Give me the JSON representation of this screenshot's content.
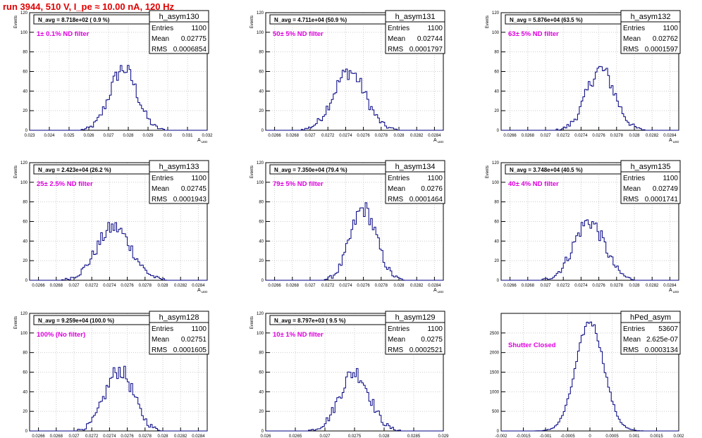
{
  "page_title": "run 3944,   510 V, I_pe ≈ 10.00 nA, 120 Hz",
  "colors": {
    "title": "#e00000",
    "histogram": "#000080",
    "annotation": "#e000e0",
    "grid": "#cccccc"
  },
  "chart_data": [
    {
      "type": "histogram",
      "name": "h_asym130",
      "title": "N_avg = 8.718e+02 ( 0.9 %)",
      "annotation": "1± 0.1% ND filter",
      "stats": {
        "Entries": "1100",
        "Mean": "0.02775",
        "RMS": "0.0006854"
      },
      "xlabel": "A_LED",
      "ylabel": "Events",
      "xlim": [
        0.023,
        0.032
      ],
      "ylim": [
        0,
        120
      ],
      "xticks": [
        "0.023",
        "0.024",
        "0.025",
        "0.026",
        "0.027",
        "0.028",
        "0.029",
        "0.03",
        "0.031",
        "0.032"
      ],
      "yticks": [
        "0",
        "20",
        "40",
        "60",
        "80",
        "100",
        "120"
      ],
      "peak": 63,
      "grid": true
    },
    {
      "type": "histogram",
      "name": "h_asym131",
      "title": "N_avg = 4.711e+04 (50.9 %)",
      "annotation": "50± 5% ND filter",
      "stats": {
        "Entries": "1100",
        "Mean": "0.02744",
        "RMS": "0.0001797"
      },
      "xlabel": "A_LED",
      "ylabel": "Events",
      "xlim": [
        0.0265,
        0.0285
      ],
      "ylim": [
        0,
        120
      ],
      "xticks": [
        "0.0266",
        "0.0268",
        "0.027",
        "0.0272",
        "0.0274",
        "0.0276",
        "0.0278",
        "0.028",
        "0.0282",
        "0.0284"
      ],
      "yticks": [
        "0",
        "20",
        "40",
        "60",
        "80",
        "100",
        "120"
      ],
      "peak": 60,
      "grid": true
    },
    {
      "type": "histogram",
      "name": "h_asym132",
      "title": "N_avg = 5.876e+04 (63.5 %)",
      "annotation": "63± 5% ND filter",
      "stats": {
        "Entries": "1100",
        "Mean": "0.02762",
        "RMS": "0.0001597"
      },
      "xlabel": "A_LED",
      "ylabel": "Events",
      "xlim": [
        0.0265,
        0.0285
      ],
      "ylim": [
        0,
        120
      ],
      "xticks": [
        "0.0266",
        "0.0268",
        "0.027",
        "0.0272",
        "0.0274",
        "0.0276",
        "0.0278",
        "0.028",
        "0.0282",
        "0.0284"
      ],
      "yticks": [
        "0",
        "20",
        "40",
        "60",
        "80",
        "100",
        "120"
      ],
      "peak": 62,
      "grid": true
    },
    {
      "type": "histogram",
      "name": "h_asym133",
      "title": "N_avg = 2.423e+04 (26.2 %)",
      "annotation": "25± 2.5% ND filter",
      "stats": {
        "Entries": "1100",
        "Mean": "0.02745",
        "RMS": "0.0001943"
      },
      "xlabel": "A_LED",
      "ylabel": "Events",
      "xlim": [
        0.0265,
        0.0285
      ],
      "ylim": [
        0,
        120
      ],
      "xticks": [
        "0.0266",
        "0.0268",
        "0.027",
        "0.0272",
        "0.0274",
        "0.0276",
        "0.0278",
        "0.028",
        "0.0282",
        "0.0284"
      ],
      "yticks": [
        "0",
        "20",
        "40",
        "60",
        "80",
        "100",
        "120"
      ],
      "peak": 54,
      "grid": true
    },
    {
      "type": "histogram",
      "name": "h_asym134",
      "title": "N_avg = 7.350e+04 (79.4 %)",
      "annotation": "79± 5% ND filter",
      "stats": {
        "Entries": "1100",
        "Mean": "0.0276",
        "RMS": "0.0001464"
      },
      "xlabel": "A_LED",
      "ylabel": "Events",
      "xlim": [
        0.0265,
        0.0285
      ],
      "ylim": [
        0,
        120
      ],
      "xticks": [
        "0.0266",
        "0.0268",
        "0.027",
        "0.0272",
        "0.0274",
        "0.0276",
        "0.0278",
        "0.028",
        "0.0282",
        "0.0284"
      ],
      "yticks": [
        "0",
        "20",
        "40",
        "60",
        "80",
        "100",
        "120"
      ],
      "peak": 73,
      "grid": true
    },
    {
      "type": "histogram",
      "name": "h_asym135",
      "title": "N_avg = 3.748e+04 (40.5 %)",
      "annotation": "40± 4% ND filter",
      "stats": {
        "Entries": "1100",
        "Mean": "0.02749",
        "RMS": "0.0001741"
      },
      "xlabel": "A_LED",
      "ylabel": "Events",
      "xlim": [
        0.0265,
        0.0285
      ],
      "ylim": [
        0,
        120
      ],
      "xticks": [
        "0.0266",
        "0.0268",
        "0.027",
        "0.0272",
        "0.0274",
        "0.0276",
        "0.0278",
        "0.028",
        "0.0282",
        "0.0284"
      ],
      "yticks": [
        "0",
        "20",
        "40",
        "60",
        "80",
        "100",
        "120"
      ],
      "peak": 60,
      "grid": true
    },
    {
      "type": "histogram",
      "name": "h_asym128",
      "title": "N_avg = 9.259e+04 (100.0 %)",
      "annotation": "100% (No filter)",
      "stats": {
        "Entries": "1100",
        "Mean": "0.02751",
        "RMS": "0.0001605"
      },
      "xlabel": "A_LED",
      "ylabel": "Events",
      "xlim": [
        0.0265,
        0.0285
      ],
      "ylim": [
        0,
        120
      ],
      "xticks": [
        "0.0266",
        "0.0268",
        "0.027",
        "0.0272",
        "0.0274",
        "0.0276",
        "0.0278",
        "0.028",
        "0.0282",
        "0.0284"
      ],
      "yticks": [
        "0",
        "20",
        "40",
        "60",
        "80",
        "100",
        "120"
      ],
      "peak": 62,
      "grid": true
    },
    {
      "type": "histogram",
      "name": "h_asym129",
      "title": "N_avg = 8.797e+03 ( 9.5 %)",
      "annotation": "10± 1% ND filter",
      "stats": {
        "Entries": "1100",
        "Mean": "0.0275",
        "RMS": "0.0002521"
      },
      "xlabel": "A_LED",
      "ylabel": "Events",
      "xlim": [
        0.026,
        0.029
      ],
      "ylim": [
        0,
        120
      ],
      "xticks": [
        "0.026",
        "0.0265",
        "0.027",
        "0.0275",
        "0.028",
        "0.0285",
        "0.029"
      ],
      "yticks": [
        "0",
        "20",
        "40",
        "60",
        "80",
        "100",
        "120"
      ],
      "peak": 60,
      "grid": true
    },
    {
      "type": "histogram",
      "name": "hPed_asym",
      "title": "",
      "annotation": "Shutter Closed",
      "stats": {
        "Entries": "53607",
        "Mean": "2.625e-07",
        "RMS": "0.0003134"
      },
      "xlabel": "",
      "ylabel": "",
      "xlim": [
        -0.002,
        0.002
      ],
      "ylim": [
        0,
        3000
      ],
      "xticks": [
        "-0.002",
        "-0.0015",
        "-0.001",
        "-0.0005",
        "0",
        "0.0005",
        "0.001",
        "0.0015",
        "0.002"
      ],
      "yticks": [
        "0",
        "500",
        "1000",
        "1500",
        "2000",
        "2500"
      ],
      "peak": 2790,
      "grid": true
    }
  ]
}
